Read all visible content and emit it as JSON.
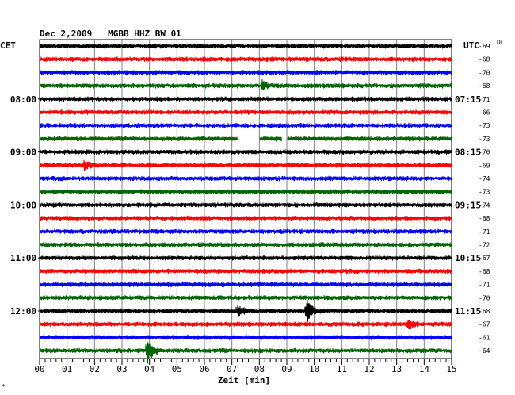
{
  "header": {
    "title": "Dec 2,2009   MGBB HHZ BW 01",
    "left_zone": "CET",
    "right_zone": "UTC",
    "dc_label": "DC"
  },
  "footer": {
    "xlabel": "Zeit [min]",
    "corner_mark": "*"
  },
  "colors": {
    "black": "#000000",
    "red": "#ff0000",
    "blue": "#0000ff",
    "green": "#006400",
    "grid": "#808080"
  },
  "chart_data": {
    "type": "line",
    "x_range_minutes": [
      0,
      15
    ],
    "x_ticks": [
      "00",
      "01",
      "02",
      "03",
      "04",
      "05",
      "06",
      "07",
      "08",
      "09",
      "10",
      "11",
      "12",
      "13",
      "14",
      "15"
    ],
    "left_time_labels": [
      "08:00",
      "09:00",
      "10:00",
      "11:00",
      "12:00"
    ],
    "right_time_labels": [
      "07:15",
      "08:15",
      "09:15",
      "10:15",
      "11:15"
    ],
    "trace_color_cycle": [
      "black",
      "red",
      "blue",
      "green"
    ],
    "dc_offsets": [
      -69,
      -68,
      -70,
      -68,
      -71,
      -66,
      -73,
      -73,
      -70,
      -69,
      -74,
      -73,
      -74,
      -68,
      -71,
      -72,
      -67,
      -68,
      -71,
      -70,
      -68,
      -67,
      -61,
      -64
    ],
    "events": [
      {
        "trace": 3,
        "minute": 8.1,
        "kind": "small"
      },
      {
        "trace": 9,
        "minute": 1.6,
        "kind": "small"
      },
      {
        "trace": 20,
        "minute": 7.2,
        "kind": "medium"
      },
      {
        "trace": 20,
        "minute": 9.7,
        "kind": "large"
      },
      {
        "trace": 21,
        "minute": 13.4,
        "kind": "small"
      },
      {
        "trace": 23,
        "minute": 3.9,
        "kind": "large"
      }
    ],
    "gaps": [
      {
        "trace": 7,
        "start_minute": 7.2,
        "end_minute": 8.0
      },
      {
        "trace": 7,
        "start_minute": 8.8,
        "end_minute": 9.0
      }
    ]
  }
}
